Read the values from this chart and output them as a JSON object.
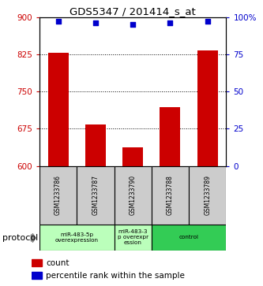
{
  "title": "GDS5347 / 201414_s_at",
  "samples": [
    "GSM1233786",
    "GSM1233787",
    "GSM1233790",
    "GSM1233788",
    "GSM1233789"
  ],
  "counts": [
    828,
    683,
    638,
    718,
    833
  ],
  "percentiles": [
    97,
    96,
    95,
    96,
    97
  ],
  "ylim_left": [
    600,
    900
  ],
  "yticks_left": [
    600,
    675,
    750,
    825,
    900
  ],
  "ylim_right": [
    0,
    100
  ],
  "yticks_right": [
    0,
    25,
    50,
    75,
    100
  ],
  "ytick_labels_right": [
    "0",
    "25",
    "50",
    "75",
    "100%"
  ],
  "bar_color": "#cc0000",
  "dot_color": "#0000cc",
  "left_tick_color": "#cc0000",
  "right_tick_color": "#0000cc",
  "protocol_groups": [
    {
      "label": "miR-483-5p\noverexpression",
      "col_indices": [
        0,
        1
      ],
      "color": "#bbffbb"
    },
    {
      "label": "miR-483-3\np overexpr\nession",
      "col_indices": [
        2
      ],
      "color": "#bbffbb"
    },
    {
      "label": "control",
      "col_indices": [
        3,
        4
      ],
      "color": "#33cc55"
    }
  ],
  "protocol_label": "protocol",
  "legend_count_label": "count",
  "legend_pct_label": "percentile rank within the sample",
  "sample_box_color": "#cccccc",
  "gridline_y": [
    675,
    750,
    825
  ]
}
